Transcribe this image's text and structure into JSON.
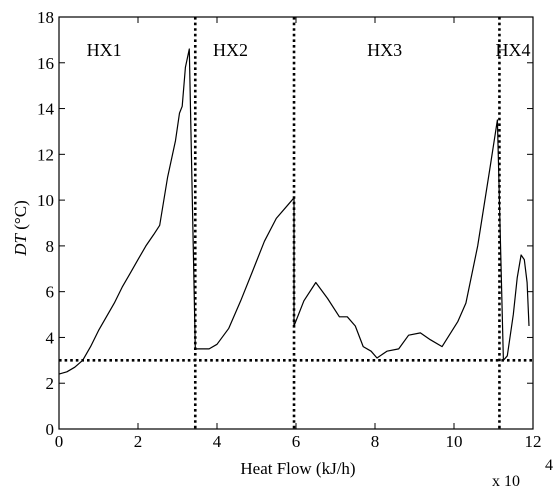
{
  "chart_data": {
    "type": "line",
    "title": "",
    "xlabel": "Heat Flow (kJ/h)",
    "xlabel_multiplier": {
      "base": "x 10",
      "exponent": "4"
    },
    "ylabel_italic": "DT",
    "ylabel_unit": " (°C)",
    "xlim": [
      0,
      12
    ],
    "ylim": [
      0,
      18
    ],
    "xticks": [
      0,
      2,
      4,
      6,
      8,
      10,
      12
    ],
    "xtick_labels": [
      "0",
      "2",
      "4",
      "6",
      "8",
      "10",
      "12"
    ],
    "yticks": [
      0,
      2,
      4,
      6,
      8,
      10,
      12,
      14,
      16,
      18
    ],
    "ytick_labels": [
      "0",
      "2",
      "4",
      "6",
      "8",
      "10",
      "12",
      "14",
      "16",
      "18"
    ],
    "grid": false,
    "colors": {
      "line": "#000000",
      "background": "#ffffff"
    },
    "regions": [
      {
        "label": "HX1",
        "x": 0.7,
        "y": 16.3
      },
      {
        "label": "HX2",
        "x": 3.9,
        "y": 16.3
      },
      {
        "label": "HX3",
        "x": 7.8,
        "y": 16.3
      },
      {
        "label": "HX4",
        "x": 11.05,
        "y": 16.3
      }
    ],
    "vertical_dotted_lines": [
      3.45,
      5.95,
      11.15
    ],
    "horizontal_dotted_line": 3.0,
    "series": [
      {
        "values": [
          [
            0.0,
            2.4
          ],
          [
            0.2,
            2.5
          ],
          [
            0.4,
            2.7
          ],
          [
            0.6,
            3.0
          ],
          [
            0.8,
            3.6
          ],
          [
            1.0,
            4.3
          ],
          [
            1.2,
            4.9
          ],
          [
            1.4,
            5.5
          ],
          [
            1.6,
            6.2
          ],
          [
            1.8,
            6.8
          ],
          [
            2.0,
            7.4
          ],
          [
            2.2,
            8.0
          ],
          [
            2.4,
            8.5
          ],
          [
            2.55,
            8.9
          ],
          [
            2.75,
            11.0
          ],
          [
            2.95,
            12.6
          ],
          [
            3.05,
            13.8
          ],
          [
            3.12,
            14.1
          ],
          [
            3.2,
            15.8
          ],
          [
            3.3,
            16.6
          ],
          [
            3.45,
            3.5
          ],
          [
            3.5,
            3.5
          ],
          [
            3.8,
            3.5
          ],
          [
            4.0,
            3.7
          ],
          [
            4.3,
            4.4
          ],
          [
            4.6,
            5.6
          ],
          [
            4.9,
            6.9
          ],
          [
            5.2,
            8.2
          ],
          [
            5.5,
            9.2
          ],
          [
            5.8,
            9.8
          ],
          [
            5.95,
            10.1
          ],
          [
            5.95,
            4.5
          ],
          [
            6.2,
            5.6
          ],
          [
            6.5,
            6.4
          ],
          [
            6.8,
            5.7
          ],
          [
            7.1,
            4.9
          ],
          [
            7.3,
            4.9
          ],
          [
            7.5,
            4.5
          ],
          [
            7.7,
            3.6
          ],
          [
            7.9,
            3.4
          ],
          [
            8.05,
            3.1
          ],
          [
            8.3,
            3.4
          ],
          [
            8.6,
            3.5
          ],
          [
            8.85,
            4.1
          ],
          [
            9.15,
            4.2
          ],
          [
            9.4,
            3.9
          ],
          [
            9.7,
            3.6
          ],
          [
            10.1,
            4.7
          ],
          [
            10.3,
            5.5
          ],
          [
            10.6,
            8.0
          ],
          [
            10.9,
            11.3
          ],
          [
            11.1,
            13.5
          ],
          [
            11.25,
            3.0
          ],
          [
            11.35,
            3.2
          ],
          [
            11.5,
            5.0
          ],
          [
            11.6,
            6.6
          ],
          [
            11.7,
            7.6
          ],
          [
            11.78,
            7.4
          ],
          [
            11.85,
            6.4
          ],
          [
            11.9,
            4.5
          ]
        ]
      }
    ]
  }
}
